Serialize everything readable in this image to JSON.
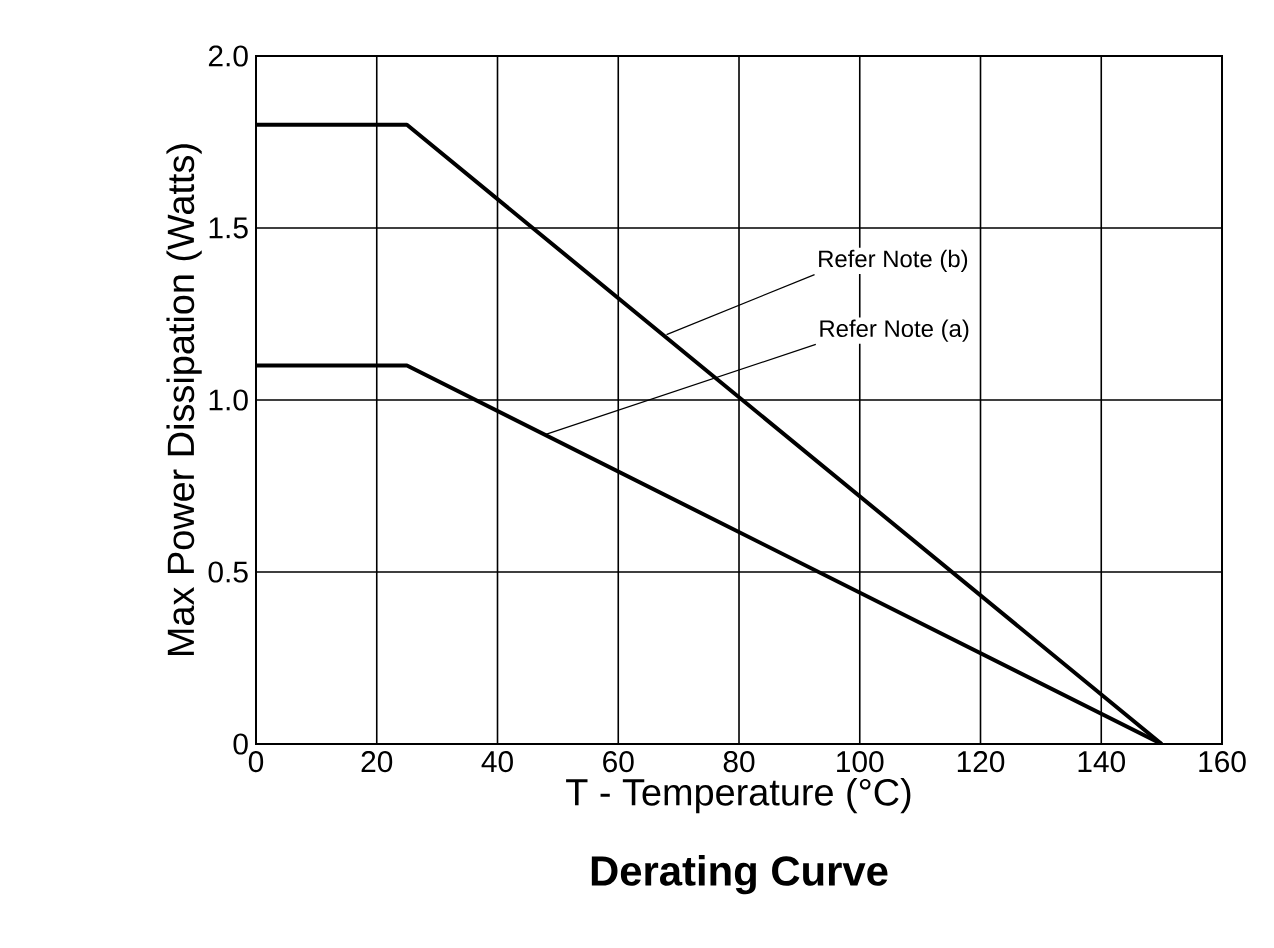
{
  "chart_data": {
    "type": "line",
    "title": "Derating Curve",
    "xlabel": "T - Temperature (°C)",
    "ylabel": "Max Power Dissipation (Watts)",
    "series": [
      {
        "color": "#000000",
        "x": [
          0,
          25,
          150
        ],
        "values": [
          1.8,
          1.8,
          0
        ]
      },
      {
        "color": "#000000",
        "x": [
          0,
          25,
          150
        ],
        "values": [
          1.1,
          1.1,
          0
        ]
      }
    ],
    "xlim": [
      0,
      160
    ],
    "ylim": [
      0,
      2
    ],
    "xticks": [
      0,
      20,
      40,
      60,
      80,
      100,
      120,
      140,
      160
    ],
    "yticks": [
      0,
      0.5,
      {
        "value": 1,
        "label": "1.0"
      },
      1.5,
      {
        "value": 2,
        "label": "2.0"
      }
    ],
    "grid": true,
    "marker": "none",
    "line_style": "solid",
    "annotations": [
      {
        "text": "Refer Note (b)",
        "x": 68,
        "y": 1.19
      },
      {
        "text": "Refer Note (a)",
        "x": 48,
        "y": 0.9
      }
    ]
  }
}
